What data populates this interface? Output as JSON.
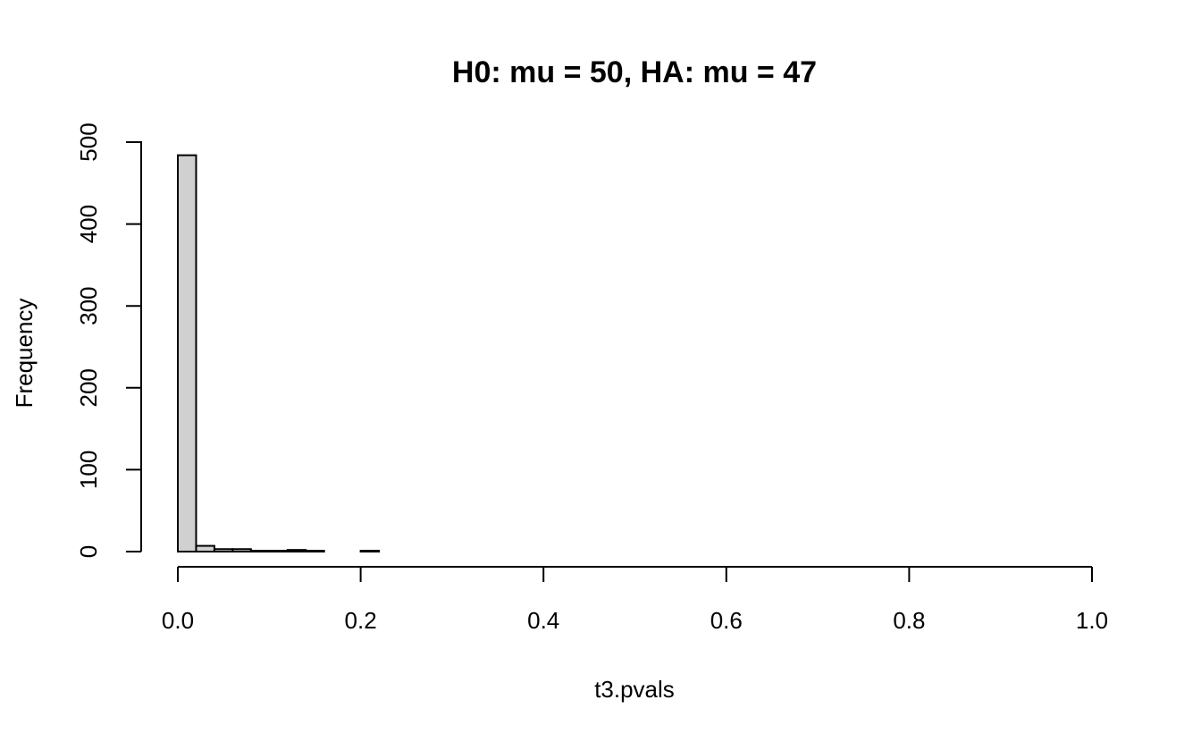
{
  "chart_data": {
    "type": "bar",
    "title": "H0: mu = 50, HA: mu = 47",
    "xlabel": "t3.pvals",
    "ylabel": "Frequency",
    "xlim": [
      0,
      1
    ],
    "ylim": [
      0,
      500
    ],
    "x_ticks": [
      0,
      0.2,
      0.4,
      0.6,
      0.8,
      1
    ],
    "x_tick_labels": [
      "0.0",
      "0.2",
      "0.4",
      "0.6",
      "0.8",
      "1.0"
    ],
    "y_ticks": [
      0,
      100,
      200,
      300,
      400,
      500
    ],
    "y_tick_labels": [
      "0",
      "100",
      "200",
      "300",
      "400",
      "500"
    ],
    "bin_width": 0.02,
    "bin_starts": [
      0.0,
      0.02,
      0.04,
      0.06,
      0.08,
      0.1,
      0.12,
      0.14,
      0.16,
      0.18,
      0.2
    ],
    "values": [
      484,
      7,
      3,
      3,
      1,
      1,
      2,
      1,
      0,
      0,
      1
    ],
    "bar_color": "#d0d0d0",
    "grid": false
  }
}
